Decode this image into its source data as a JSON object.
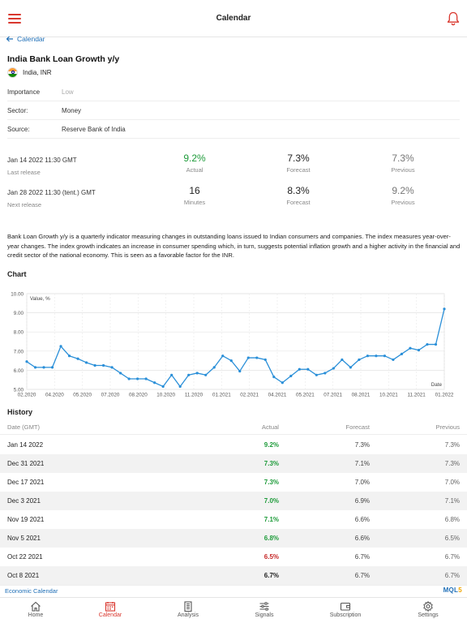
{
  "header": {
    "title": "Calendar"
  },
  "back": {
    "label": "Calendar"
  },
  "event": {
    "title": "India Bank Loan Growth y/y",
    "country": "India, INR",
    "importance_label": "Importance",
    "importance_value": "Low",
    "sector_label": "Sector:",
    "sector_value": "Money",
    "source_label": "Source:",
    "source_value": "Reserve Bank of India"
  },
  "last_release": {
    "date": "Jan 14 2022 11:30 GMT",
    "label": "Last release",
    "actual": "9.2%",
    "actual_label": "Actual",
    "forecast": "7.3%",
    "forecast_label": "Forecast",
    "previous": "7.3%",
    "previous_label": "Previous"
  },
  "next_release": {
    "date": "Jan 28 2022 11:30 (tent.) GMT",
    "label": "Next release",
    "minutes": "16",
    "minutes_label": "Minutes",
    "forecast": "8.3%",
    "forecast_label": "Forecast",
    "previous": "9.2%",
    "previous_label": "Previous"
  },
  "description": "Bank Loan Growth y/y is a quarterly indicator measuring changes in outstanding loans issued to Indian consumers and companies. The index measures year-over-year changes. The index growth indicates an increase in consumer spending which, in turn, suggests potential inflation growth and a higher activity in the financial and credit sector of the national economy. This is seen as a favorable factor for the INR.",
  "chart_heading": "Chart",
  "chart_data": {
    "type": "line",
    "ylabel": "Value, %",
    "xlabel": "Date",
    "ylim": [
      5.0,
      10.0
    ],
    "yticks": [
      "5.00",
      "6.00",
      "7.00",
      "8.00",
      "9.00",
      "10.00"
    ],
    "xticks": [
      "02.2020",
      "04.2020",
      "05.2020",
      "07.2020",
      "08.2020",
      "10.2020",
      "11.2020",
      "01.2021",
      "02.2021",
      "04.2021",
      "05.2021",
      "07.2021",
      "08.2021",
      "10.2021",
      "11.2021",
      "01.2022"
    ],
    "grid": true,
    "color": "#2a8fd8",
    "series": [
      {
        "values": [
          6.45,
          6.15,
          6.15,
          6.15,
          7.25,
          6.75,
          6.6,
          6.4,
          6.25,
          6.25,
          6.15,
          5.85,
          5.55,
          5.55,
          5.55,
          5.35,
          5.15,
          5.75,
          5.15,
          5.75,
          5.85,
          5.75,
          6.15,
          6.75,
          6.5,
          5.95,
          6.65,
          6.65,
          6.55,
          5.65,
          5.35,
          5.7,
          6.05,
          6.05,
          5.75,
          5.85,
          6.1,
          6.55,
          6.15,
          6.55,
          6.75,
          6.75,
          6.75,
          6.55,
          6.85,
          7.15,
          7.05,
          7.35,
          7.35,
          9.2
        ]
      }
    ]
  },
  "history": {
    "heading": "History",
    "columns": {
      "date": "Date (GMT)",
      "actual": "Actual",
      "forecast": "Forecast",
      "previous": "Previous"
    },
    "rows": [
      {
        "date": "Jan 14 2022",
        "actual": "9.2%",
        "forecast": "7.3%",
        "previous": "7.3%",
        "color": "#1e9b3a"
      },
      {
        "date": "Dec 31 2021",
        "actual": "7.3%",
        "forecast": "7.1%",
        "previous": "7.3%",
        "color": "#1e9b3a"
      },
      {
        "date": "Dec 17 2021",
        "actual": "7.3%",
        "forecast": "7.0%",
        "previous": "7.0%",
        "color": "#1e9b3a"
      },
      {
        "date": "Dec 3 2021",
        "actual": "7.0%",
        "forecast": "6.9%",
        "previous": "7.1%",
        "color": "#1e9b3a"
      },
      {
        "date": "Nov 19 2021",
        "actual": "7.1%",
        "forecast": "6.6%",
        "previous": "6.8%",
        "color": "#1e9b3a"
      },
      {
        "date": "Nov 5 2021",
        "actual": "6.8%",
        "forecast": "6.6%",
        "previous": "6.5%",
        "color": "#1e9b3a"
      },
      {
        "date": "Oct 22 2021",
        "actual": "6.5%",
        "forecast": "6.7%",
        "previous": "6.7%",
        "color": "#c62828"
      },
      {
        "date": "Oct 8 2021",
        "actual": "6.7%",
        "forecast": "6.7%",
        "previous": "6.7%",
        "color": "#222222"
      }
    ]
  },
  "footer": {
    "link": "Economic Calendar",
    "logo_a": "MQL",
    "logo_b": "5"
  },
  "tabs": [
    {
      "label": "Home",
      "icon": "home-icon"
    },
    {
      "label": "Calendar",
      "icon": "calendar-icon"
    },
    {
      "label": "Analysis",
      "icon": "analysis-icon"
    },
    {
      "label": "Signals",
      "icon": "signals-icon"
    },
    {
      "label": "Subscription",
      "icon": "wallet-icon"
    },
    {
      "label": "Settings",
      "icon": "gear-icon"
    }
  ],
  "colors": {
    "accent": "#d9372e",
    "link": "#1f6fb7",
    "positive": "#1e9b3a",
    "negative": "#c62828",
    "chart_line": "#2a8fd8"
  }
}
